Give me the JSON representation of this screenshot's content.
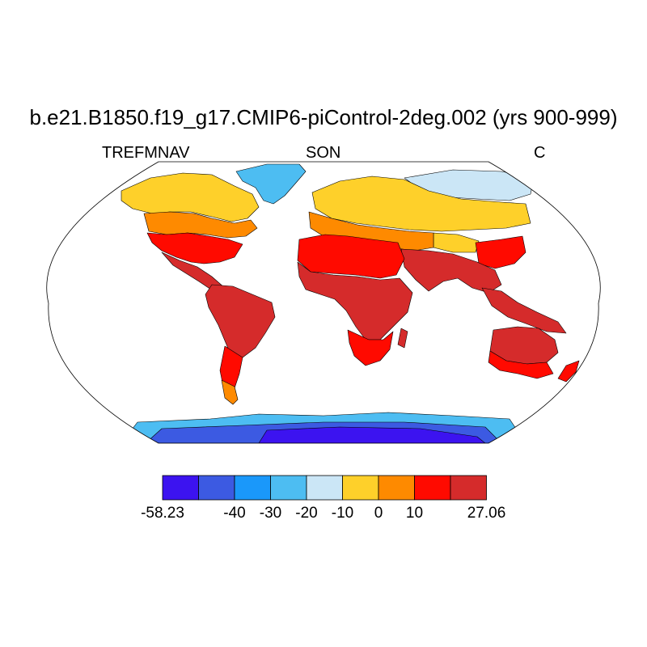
{
  "title": "b.e21.B1850.f19_g17.CMIP6-piControl-2deg.002 (yrs 900-999)",
  "variable": "TREFMNAV",
  "season": "SON",
  "units": "C",
  "colorbar": {
    "colors": [
      "#3c13f0",
      "#3c5ae2",
      "#1a98fa",
      "#4dbdf2",
      "#cbe6f6",
      "#fed02a",
      "#fe8a00",
      "#ff0a00",
      "#d52b2b"
    ],
    "labels": [
      "-58.23",
      "",
      "-40",
      "-30",
      "-20",
      "-10",
      "0",
      "10",
      "",
      "27.06"
    ]
  }
}
